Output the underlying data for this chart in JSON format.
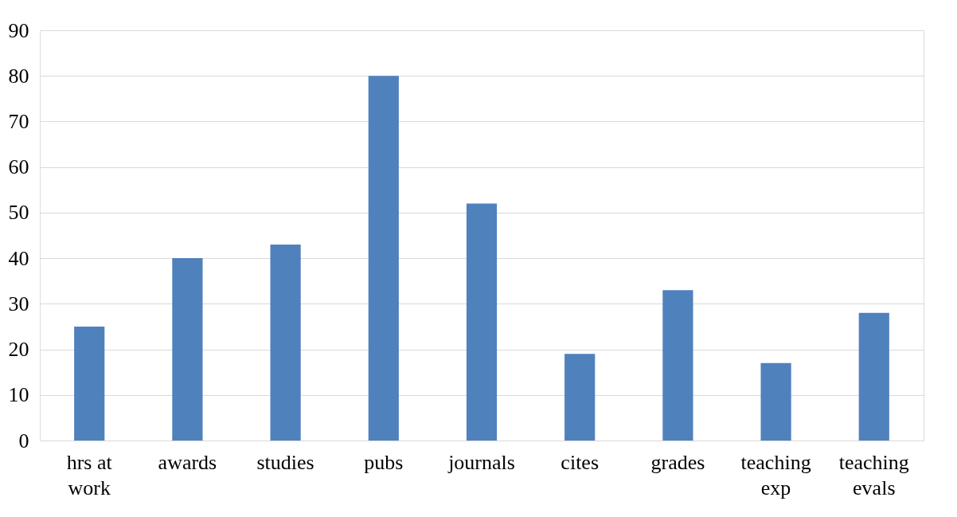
{
  "chart_data": {
    "type": "bar",
    "categories": [
      "hrs at work",
      "awards",
      "studies",
      "pubs",
      "journals",
      "cites",
      "grades",
      "teaching exp",
      "teaching evals"
    ],
    "values": [
      25,
      40,
      43,
      80,
      52,
      19,
      33,
      17,
      28
    ],
    "color": "#4f81bd",
    "ylim": [
      0,
      90
    ],
    "yticks": [
      0,
      10,
      20,
      30,
      40,
      50,
      60,
      70,
      80,
      90
    ],
    "grid": "y"
  }
}
